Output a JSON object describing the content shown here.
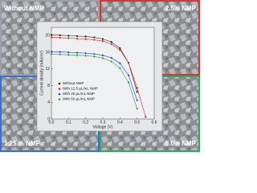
{
  "panels": [
    "Without NMP",
    "2.5% NMP",
    "1.25 % NMP",
    "5.0% NMP"
  ],
  "chart_data": {
    "type": "line",
    "x_label": "Voltage (V)",
    "y_label": "Current density (mA/cm²)",
    "x": [
      0,
      0.05,
      0.1,
      0.15,
      0.2,
      0.25,
      0.3,
      0.35,
      0.4,
      0.45,
      0.5,
      0.55
    ],
    "xlim": [
      0,
      0.6
    ],
    "xticks": [
      {
        "value": 0,
        "label": "0.0"
      },
      0.1,
      0.2,
      0.3,
      0.4,
      0.5,
      0.6
    ],
    "ylim": [
      0,
      22
    ],
    "yticks": [
      0,
      4,
      8,
      12,
      16,
      20
    ],
    "series": [
      {
        "name": "Without NMP",
        "color": "#222222",
        "values": [
          20.2,
          20.1,
          20.0,
          19.9,
          19.8,
          19.6,
          19.2,
          18.5,
          17.0,
          13.5,
          6.5,
          null
        ]
      },
      {
        "name": "With 12.5 µL/mL NMP",
        "color": "#e02020",
        "values": [
          19.6,
          19.5,
          19.4,
          19.3,
          19.2,
          19.0,
          18.7,
          18.0,
          16.6,
          13.5,
          7.5,
          0.5
        ]
      },
      {
        "name": "With 25 µL/mL NMP",
        "color": "#2040e0",
        "values": [
          16.2,
          16.1,
          16.0,
          15.9,
          15.8,
          15.6,
          15.3,
          14.7,
          13.4,
          10.5,
          4.5,
          null
        ]
      },
      {
        "name": "With 50 µL/mL NMP",
        "color": "#20a040",
        "values": [
          15.6,
          15.5,
          15.4,
          15.3,
          15.2,
          15.0,
          14.6,
          13.8,
          12.2,
          8.8,
          2.5,
          null
        ]
      }
    ]
  }
}
